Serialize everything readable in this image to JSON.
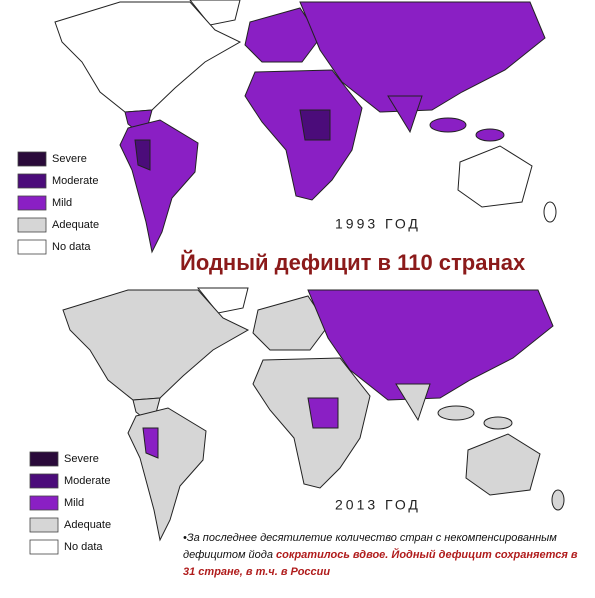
{
  "maps": [
    {
      "year_label": "1993 ГОД"
    },
    {
      "year_label": "2013 ГОД"
    }
  ],
  "legend": [
    {
      "label": "Severe",
      "color": "#2a0a3a"
    },
    {
      "label": "Moderate",
      "color": "#4b0c7a"
    },
    {
      "label": "Mild",
      "color": "#8a1fc4"
    },
    {
      "label": "Adequate",
      "color": "#d6d6d6"
    },
    {
      "label": "No data",
      "color": "#ffffff"
    }
  ],
  "title": "Йодный дефицит в 110 странах",
  "note": {
    "text": "•За последнее десятилетие количество стран с некомпенсированным дефицитом йода ",
    "highlight": "сократилось вдвое.  Йодный дефицит сохраняется в 31 стране, в т.ч. в России"
  }
}
